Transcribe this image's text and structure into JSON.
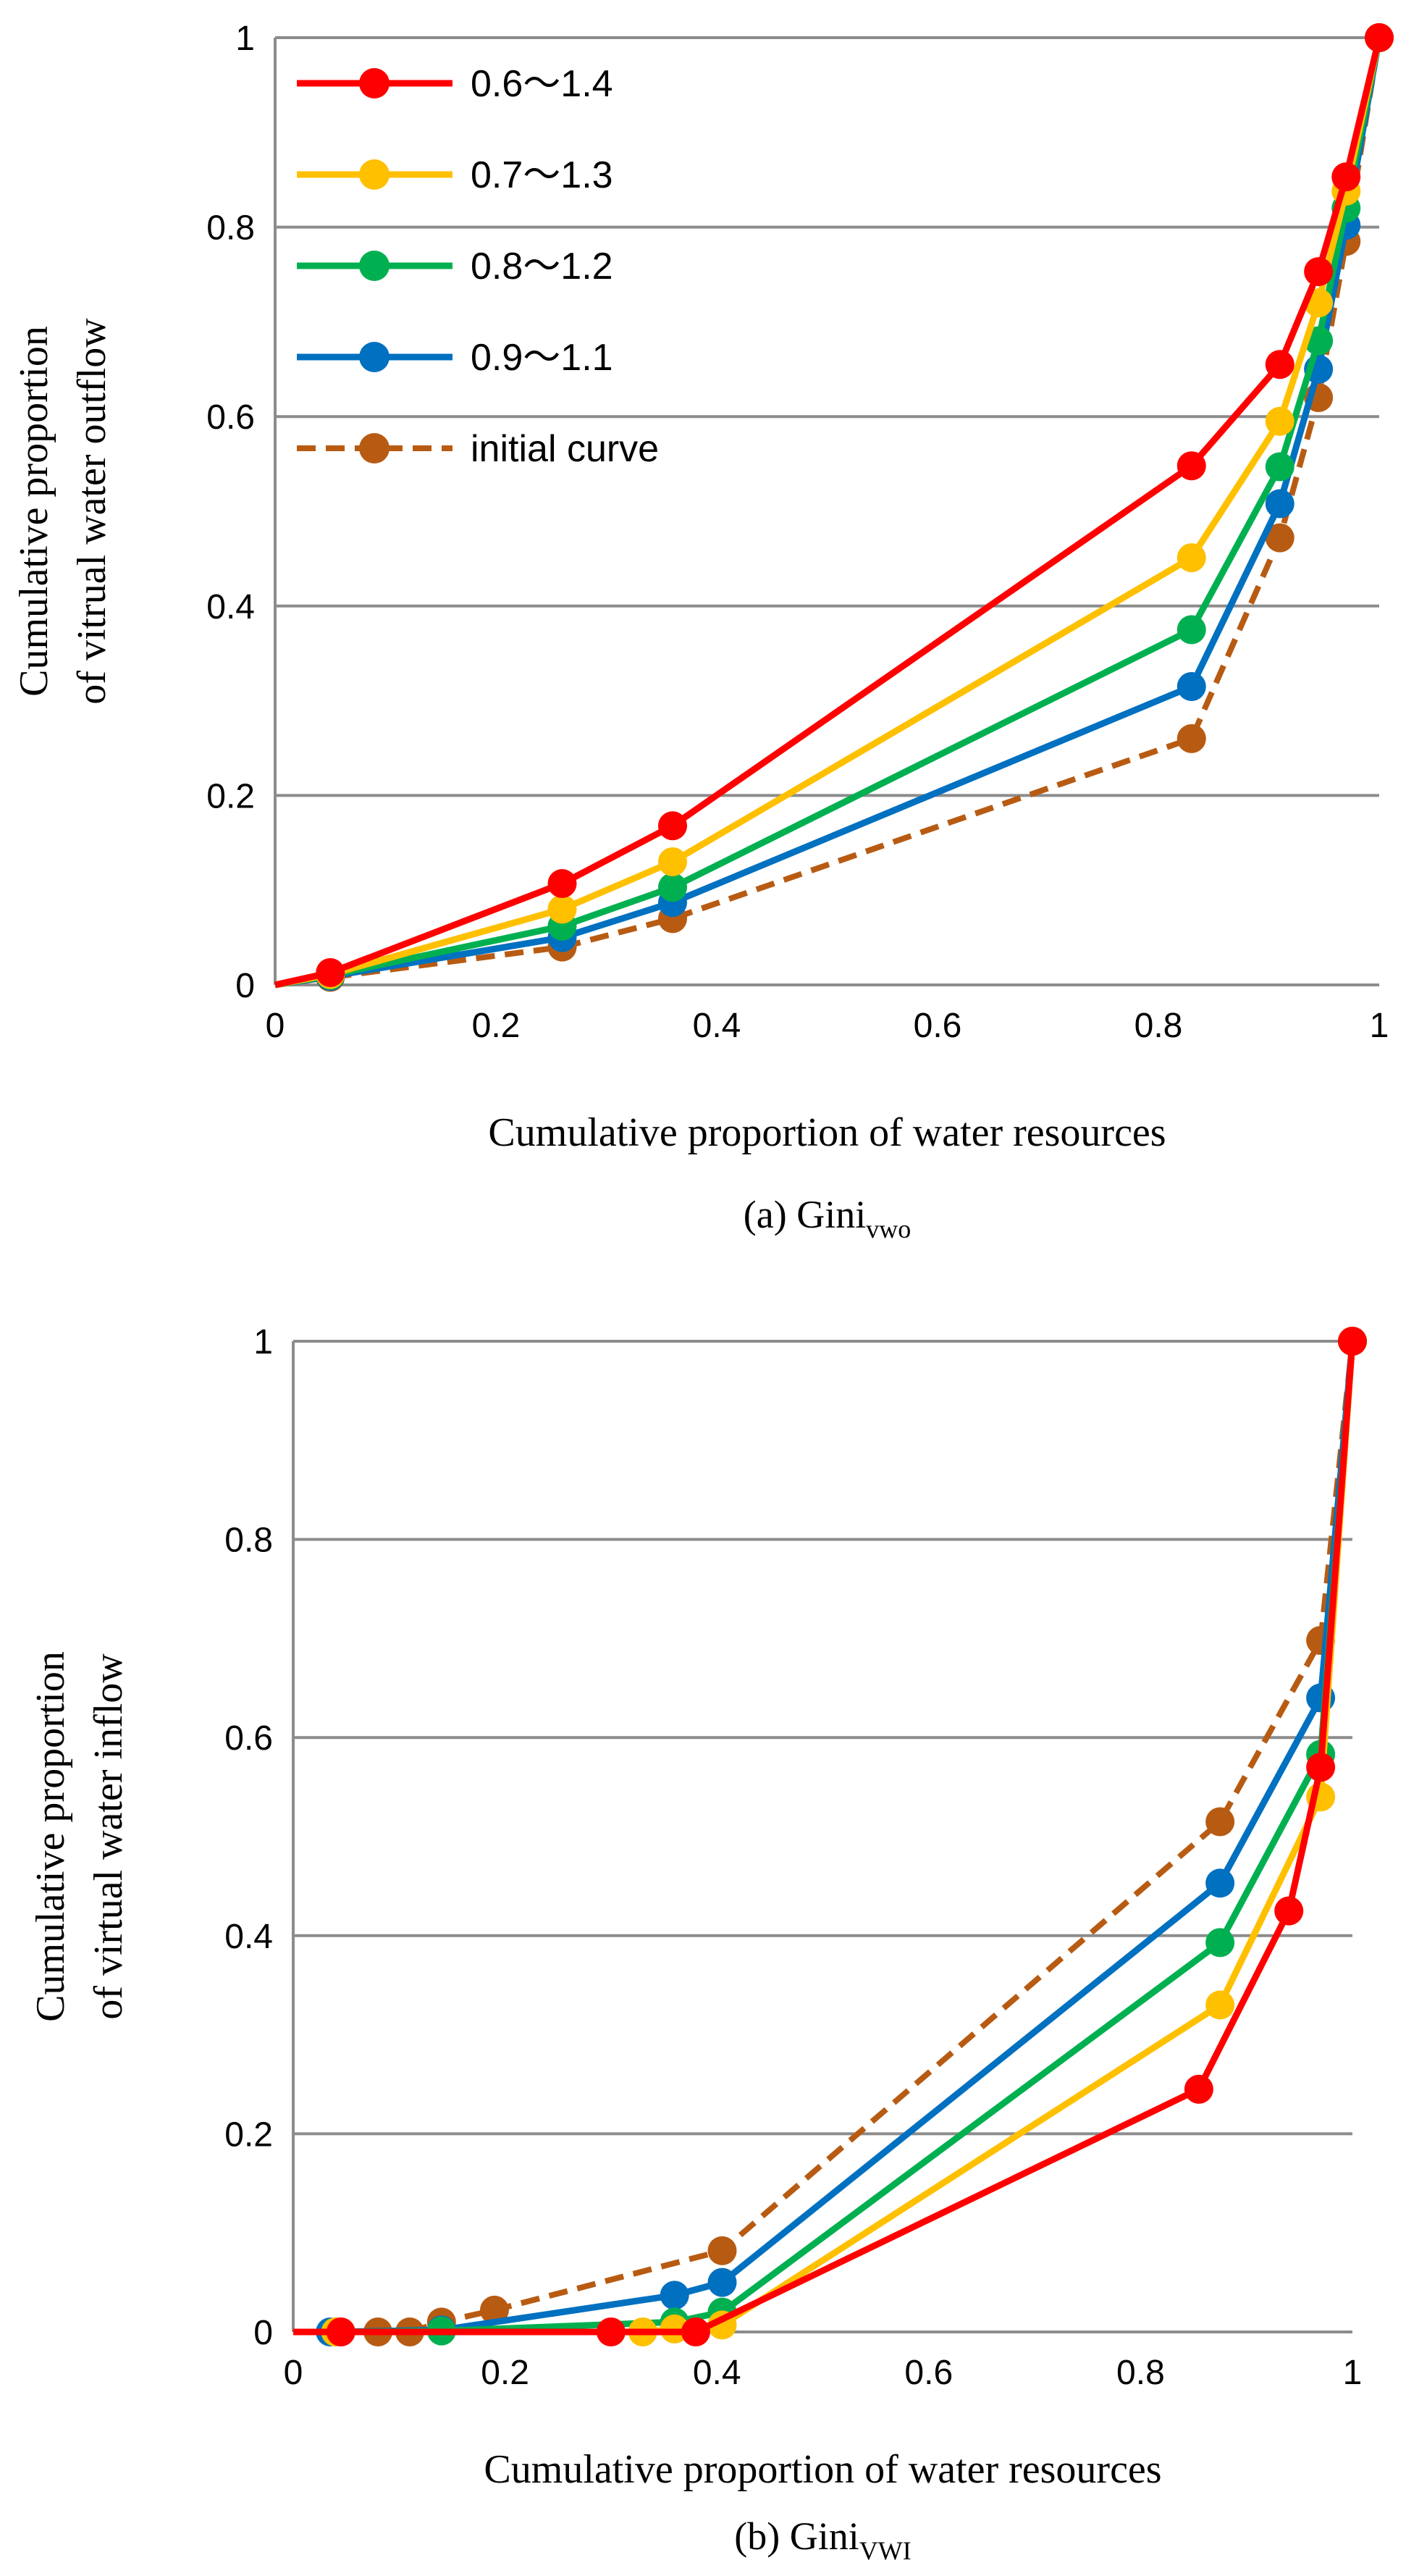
{
  "chart_data": [
    {
      "type": "line",
      "caption": "(a) Gini",
      "caption_sub": "vwo",
      "xlabel": "Cumulative proportion of water resources",
      "ylabel_lines": [
        "Cumulative proportion",
        "of vitrual water outflow"
      ],
      "xlim": [
        0,
        1
      ],
      "ylim": [
        0,
        1
      ],
      "xticks": [
        "0",
        "0.2",
        "0.4",
        "0.6",
        "0.8",
        "1"
      ],
      "yticks": [
        "0",
        "0.2",
        "0.4",
        "0.6",
        "0.8",
        "1"
      ],
      "grid": "horizontal",
      "legend_position": "top-left",
      "series": [
        {
          "name": "0.6～1.4",
          "color": "#ff0000",
          "dash": false,
          "x": [
            0,
            0.05,
            0.26,
            0.36,
            0.83,
            0.91,
            0.945,
            0.97,
            1
          ],
          "y": [
            0,
            0.013,
            0.107,
            0.168,
            0.548,
            0.655,
            0.753,
            0.853,
            1
          ]
        },
        {
          "name": "0.7～1.3",
          "color": "#ffc000",
          "dash": false,
          "x": [
            0,
            0.05,
            0.26,
            0.36,
            0.83,
            0.91,
            0.945,
            0.97,
            1
          ],
          "y": [
            0,
            0.011,
            0.08,
            0.13,
            0.451,
            0.595,
            0.72,
            0.838,
            1
          ]
        },
        {
          "name": "0.8～1.2",
          "color": "#00b050",
          "dash": false,
          "x": [
            0,
            0.05,
            0.26,
            0.36,
            0.83,
            0.91,
            0.945,
            0.97,
            1
          ],
          "y": [
            0,
            0.01,
            0.062,
            0.103,
            0.375,
            0.547,
            0.68,
            0.82,
            1
          ]
        },
        {
          "name": "0.9～1.1",
          "color": "#0070c0",
          "dash": false,
          "x": [
            0,
            0.05,
            0.26,
            0.36,
            0.83,
            0.91,
            0.945,
            0.97,
            1
          ],
          "y": [
            0,
            0.009,
            0.05,
            0.087,
            0.315,
            0.508,
            0.65,
            0.802,
            1
          ]
        },
        {
          "name": "initial curve",
          "color": "#b85b12",
          "dash": true,
          "x": [
            0,
            0.05,
            0.26,
            0.36,
            0.83,
            0.91,
            0.945,
            0.97,
            1
          ],
          "y": [
            0,
            0.008,
            0.04,
            0.07,
            0.26,
            0.472,
            0.62,
            0.785,
            1
          ]
        }
      ]
    },
    {
      "type": "line",
      "caption": "(b) Gini",
      "caption_sub": "VWI",
      "xlabel": "Cumulative proportion of water resources",
      "ylabel_lines": [
        "Cumulative proportion",
        "of virtual water inflow"
      ],
      "xlim": [
        0,
        1
      ],
      "ylim": [
        0,
        1
      ],
      "xticks": [
        "0",
        "0.2",
        "0.4",
        "0.6",
        "0.8",
        "1"
      ],
      "yticks": [
        "0",
        "0.2",
        "0.4",
        "0.6",
        "0.8",
        "1"
      ],
      "grid": "horizontal",
      "series": [
        {
          "name": "0.6～1.4",
          "color": "#ff0000",
          "dash": false,
          "x": [
            0,
            0.045,
            0.3,
            0.38,
            0.855,
            0.94,
            0.97,
            1
          ],
          "y": [
            0,
            0,
            0,
            0,
            0.245,
            0.425,
            0.57,
            1
          ]
        },
        {
          "name": "0.7～1.3",
          "color": "#ffc000",
          "dash": false,
          "x": [
            0,
            0.04,
            0.33,
            0.36,
            0.405,
            0.875,
            0.97,
            1
          ],
          "y": [
            0,
            0,
            0,
            0.003,
            0.007,
            0.33,
            0.54,
            1
          ]
        },
        {
          "name": "0.8～1.2",
          "color": "#00b050",
          "dash": false,
          "x": [
            0,
            0.04,
            0.14,
            0.36,
            0.405,
            0.875,
            0.97,
            1
          ],
          "y": [
            0,
            0,
            0.001,
            0.01,
            0.02,
            0.393,
            0.583,
            1
          ]
        },
        {
          "name": "0.9～1.1",
          "color": "#0070c0",
          "dash": false,
          "x": [
            0,
            0.035,
            0.14,
            0.36,
            0.405,
            0.875,
            0.97,
            1
          ],
          "y": [
            0,
            0,
            0.002,
            0.037,
            0.05,
            0.453,
            0.64,
            1
          ]
        },
        {
          "name": "initial curve",
          "color": "#b85b12",
          "dash": true,
          "x": [
            0,
            0.08,
            0.11,
            0.14,
            0.19,
            0.405,
            0.875,
            0.97,
            1
          ],
          "y": [
            0,
            0,
            0,
            0.01,
            0.022,
            0.082,
            0.515,
            0.698,
            1
          ]
        }
      ]
    }
  ]
}
